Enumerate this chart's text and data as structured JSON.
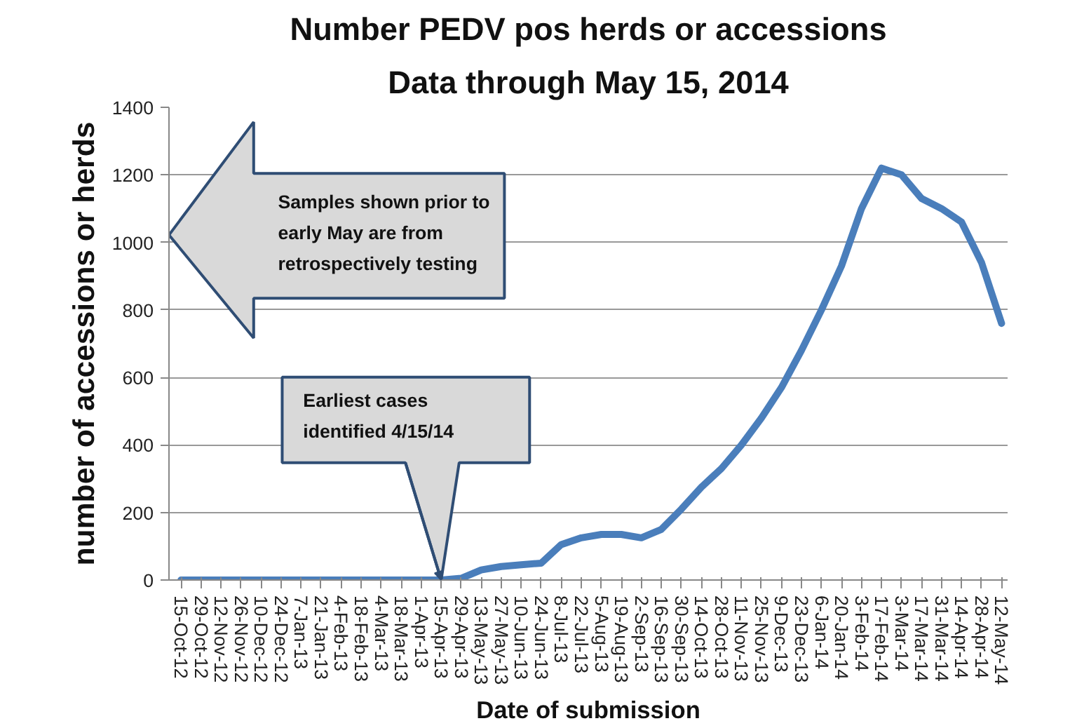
{
  "chart_data": {
    "type": "line",
    "title": "Number PEDV pos herds or accessions",
    "subtitle": "Data through May 15, 2014",
    "xlabel": "Date of submission",
    "ylabel": "number of accessions or herds",
    "categories": [
      "15-Oct-12",
      "29-Oct-12",
      "12-Nov-12",
      "26-Nov-12",
      "10-Dec-12",
      "24-Dec-12",
      "7-Jan-13",
      "21-Jan-13",
      "4-Feb-13",
      "18-Feb-13",
      "4-Mar-13",
      "18-Mar-13",
      "1-Apr-13",
      "15-Apr-13",
      "29-Apr-13",
      "13-May-13",
      "27-May-13",
      "10-Jun-13",
      "24-Jun-13",
      "8-Jul-13",
      "22-Jul-13",
      "5-Aug-13",
      "19-Aug-13",
      "2-Sep-13",
      "16-Sep-13",
      "30-Sep-13",
      "14-Oct-13",
      "28-Oct-13",
      "11-Nov-13",
      "25-Nov-13",
      "9-Dec-13",
      "23-Dec-13",
      "6-Jan-14",
      "20-Jan-14",
      "3-Feb-14",
      "17-Feb-14",
      "3-Mar-14",
      "17-Mar-14",
      "31-Mar-14",
      "14-Apr-14",
      "28-Apr-14",
      "12-May-14"
    ],
    "series": [
      {
        "color": "#4a7ebb",
        "values": [
          0,
          0,
          0,
          0,
          0,
          0,
          0,
          0,
          0,
          0,
          0,
          0,
          0,
          0,
          5,
          30,
          40,
          45,
          50,
          105,
          125,
          135,
          135,
          125,
          150,
          210,
          275,
          330,
          400,
          480,
          570,
          680,
          800,
          930,
          1100,
          1220,
          1200,
          1130,
          1100,
          1060,
          940,
          760
        ]
      }
    ],
    "ylim": [
      0,
      1400
    ],
    "yticks": [
      0,
      200,
      400,
      600,
      800,
      1000,
      1200,
      1400
    ],
    "grid": "y",
    "marker": "none",
    "line_style": "solid",
    "annotations": [
      "Samples shown prior to early May are from retrospectively testing",
      {
        "text": "Earliest cases identified 4/15/14",
        "x": "15-Apr-13",
        "y": 0
      }
    ]
  }
}
